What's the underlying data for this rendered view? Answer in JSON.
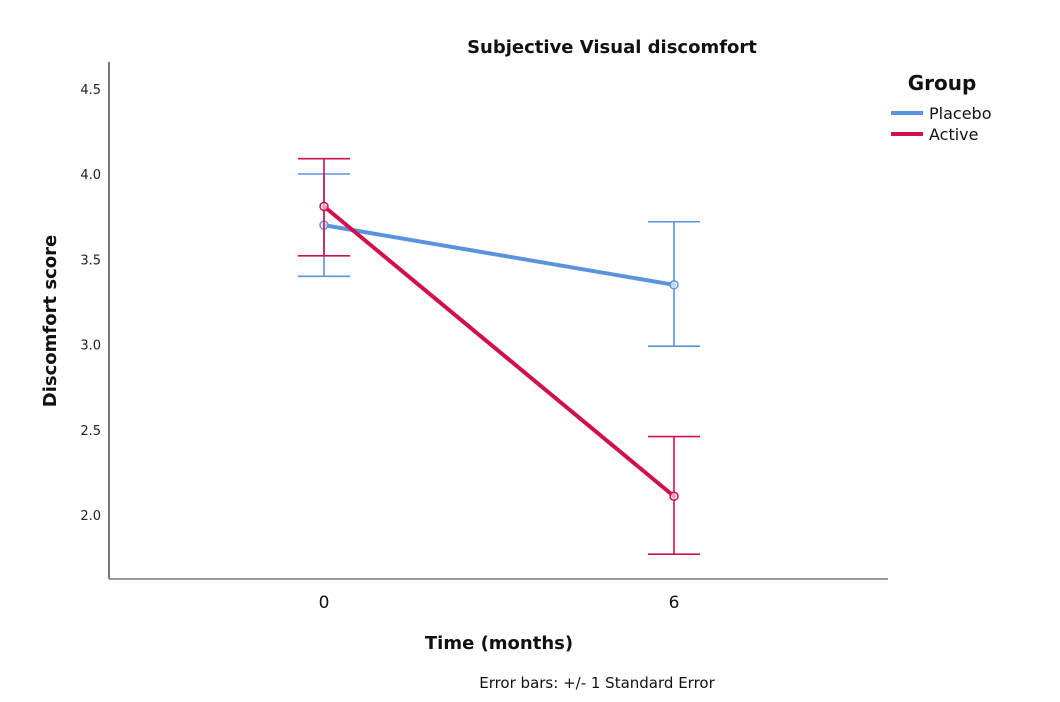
{
  "chart_data": {
    "type": "line",
    "title": "Subjective Visual discomfort",
    "xlabel": "Time (months)",
    "ylabel": "Discomfort score",
    "categories": [
      "0",
      "6"
    ],
    "yticks": [
      "2.0",
      "2.5",
      "3.0",
      "3.5",
      "4.0",
      "4.5"
    ],
    "ylim": [
      1.6,
      4.67
    ],
    "grid": false,
    "legend": {
      "title": "Group",
      "position": "right-top"
    },
    "footnote": "Error bars: +/- 1 Standard Error",
    "series": [
      {
        "name": "Placebo",
        "color": "#5b93de",
        "values": [
          3.7,
          3.35
        ],
        "error_upper": [
          4.0,
          3.72
        ],
        "error_lower": [
          3.4,
          2.99
        ]
      },
      {
        "name": "Active",
        "color": "#d0104c",
        "values": [
          3.81,
          2.11
        ],
        "error_upper": [
          4.09,
          2.46
        ],
        "error_lower": [
          3.52,
          1.77
        ]
      }
    ]
  }
}
